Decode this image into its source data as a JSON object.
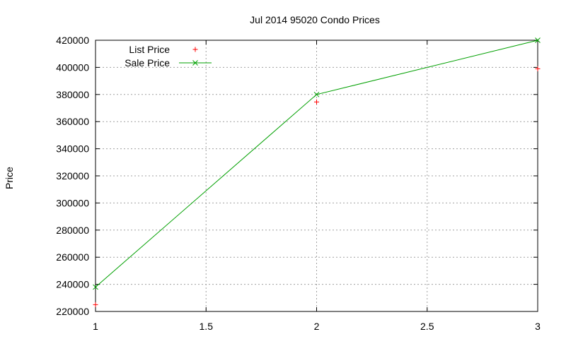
{
  "chart_data": {
    "type": "line",
    "title": "Jul 2014 95020 Condo Prices",
    "xlabel": "",
    "ylabel": "Price",
    "xlim": [
      1,
      3
    ],
    "ylim": [
      220000,
      420000
    ],
    "x_ticks": [
      "1",
      "1.5",
      "2",
      "2.5",
      "3"
    ],
    "y_ticks": [
      "220000",
      "240000",
      "260000",
      "280000",
      "300000",
      "320000",
      "340000",
      "360000",
      "380000",
      "400000",
      "420000"
    ],
    "grid": true,
    "legend_position": "top-left",
    "series": [
      {
        "name": "List Price",
        "style": "points",
        "marker": "+",
        "color": "#ff0000",
        "x": [
          1,
          2,
          3
        ],
        "y": [
          225000,
          374500,
          399000
        ]
      },
      {
        "name": "Sale Price",
        "style": "linespoints",
        "marker": "x",
        "color": "#00a000",
        "x": [
          1,
          2,
          3
        ],
        "y": [
          238000,
          380000,
          420000
        ]
      }
    ]
  }
}
